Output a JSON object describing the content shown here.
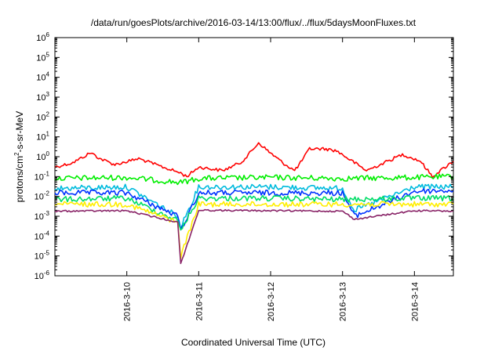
{
  "chart_data": {
    "type": "line",
    "title": "/data/run/goesPlots/archive/2016-03-14/13:00/flux/../flux/5daysMoonFluxes.txt",
    "xlabel": "Coordinated Universal Time (UTC)",
    "ylabel": "protons/cm²-s-sr-MeV",
    "ylabel_parts": {
      "pre": "protons/cm",
      "sup": "2",
      "post": "-s-sr-MeV"
    },
    "yscale": "log",
    "ylim": [
      1e-06,
      1000000.0
    ],
    "xlim": [
      "2016-03-09 00:00",
      "2016-03-14 13:00"
    ],
    "grid": false,
    "legend": "none",
    "y_ticks": [
      {
        "value": 1000000.0,
        "base": "10",
        "exp": "6"
      },
      {
        "value": 100000.0,
        "base": "10",
        "exp": "5"
      },
      {
        "value": 10000.0,
        "base": "10",
        "exp": "4"
      },
      {
        "value": 1000.0,
        "base": "10",
        "exp": "3"
      },
      {
        "value": 100.0,
        "base": "10",
        "exp": "2"
      },
      {
        "value": 10.0,
        "base": "10",
        "exp": "1"
      },
      {
        "value": 1.0,
        "base": "10",
        "exp": "0"
      },
      {
        "value": 0.1,
        "base": "10",
        "exp": "-1"
      },
      {
        "value": 0.01,
        "base": "10",
        "exp": "-2"
      },
      {
        "value": 0.001,
        "base": "10",
        "exp": "-3"
      },
      {
        "value": 0.0001,
        "base": "10",
        "exp": "-4"
      },
      {
        "value": 1e-05,
        "base": "10",
        "exp": "-5"
      },
      {
        "value": 1e-06,
        "base": "10",
        "exp": "-6"
      }
    ],
    "x_ticks": [
      {
        "value": "2016-03-10 00:00",
        "label": "2016-3-10"
      },
      {
        "value": "2016-03-11 00:00",
        "label": "2016-3-11"
      },
      {
        "value": "2016-03-12 00:00",
        "label": "2016-3-12"
      },
      {
        "value": "2016-03-13 00:00",
        "label": "2016-3-13"
      },
      {
        "value": "2016-03-14 00:00",
        "label": "2016-3-14"
      }
    ],
    "series": [
      {
        "color": "#ff0000",
        "x": [
          "2016-03-09 00:00",
          "2016-03-09 06:00",
          "2016-03-09 12:00",
          "2016-03-09 15:00",
          "2016-03-09 20:00",
          "2016-03-10 04:00",
          "2016-03-10 12:00",
          "2016-03-10 18:00",
          "2016-03-10 20:00",
          "2016-03-11 00:00",
          "2016-03-11 08:00",
          "2016-03-11 14:00",
          "2016-03-11 16:00",
          "2016-03-11 20:00",
          "2016-03-11 23:00",
          "2016-03-12 04:00",
          "2016-03-12 08:00",
          "2016-03-12 10:00",
          "2016-03-12 13:00",
          "2016-03-12 18:00",
          "2016-03-12 22:00",
          "2016-03-13 04:00",
          "2016-03-13 08:00",
          "2016-03-13 14:00",
          "2016-03-13 20:00",
          "2016-03-14 02:00",
          "2016-03-14 06:00",
          "2016-03-14 13:00"
        ],
        "y": [
          0.3,
          0.5,
          1.6,
          0.8,
          0.4,
          0.8,
          0.3,
          0.15,
          0.1,
          0.3,
          0.2,
          0.5,
          1.0,
          5.0,
          2.0,
          0.5,
          0.2,
          0.5,
          2.5,
          2.5,
          2.0,
          0.5,
          0.2,
          0.5,
          1.3,
          0.6,
          0.1,
          0.6
        ]
      },
      {
        "color": "#00ee00",
        "x": [
          "2016-03-09 00:00",
          "2016-03-10 00:00",
          "2016-03-10 18:00",
          "2016-03-11 00:00",
          "2016-03-12 00:00",
          "2016-03-13 00:00",
          "2016-03-14 00:00",
          "2016-03-14 13:00"
        ],
        "y": [
          0.08,
          0.09,
          0.05,
          0.08,
          0.09,
          0.08,
          0.09,
          0.1
        ]
      },
      {
        "color": "#00bbdd",
        "x": [
          "2016-03-09 00:00",
          "2016-03-10 00:00",
          "2016-03-10 17:00",
          "2016-03-10 18:00",
          "2016-03-11 00:00",
          "2016-03-12 00:00",
          "2016-03-13 00:00",
          "2016-03-13 04:00",
          "2016-03-14 00:00",
          "2016-03-14 13:00"
        ],
        "y": [
          0.025,
          0.03,
          0.001,
          0.0003,
          0.03,
          0.03,
          0.025,
          0.002,
          0.03,
          0.03
        ]
      },
      {
        "color": "#0033ff",
        "x": [
          "2016-03-09 00:00",
          "2016-03-10 00:00",
          "2016-03-10 17:00",
          "2016-03-10 18:00",
          "2016-03-11 00:00",
          "2016-03-12 00:00",
          "2016-03-13 00:00",
          "2016-03-13 04:00",
          "2016-03-14 00:00",
          "2016-03-14 13:00"
        ],
        "y": [
          0.015,
          0.015,
          0.001,
          0.0002,
          0.015,
          0.015,
          0.015,
          0.001,
          0.018,
          0.02
        ]
      },
      {
        "color": "#00dd66",
        "x": [
          "2016-03-09 00:00",
          "2016-03-10 00:00",
          "2016-03-10 17:00",
          "2016-03-10 18:00",
          "2016-03-11 00:00",
          "2016-03-12 00:00",
          "2016-03-13 00:00",
          "2016-03-14 00:00",
          "2016-03-14 13:00"
        ],
        "y": [
          0.007,
          0.008,
          0.0006,
          0.0002,
          0.008,
          0.008,
          0.007,
          0.008,
          0.008
        ]
      },
      {
        "color": "#ffee00",
        "x": [
          "2016-03-09 00:00",
          "2016-03-10 00:00",
          "2016-03-10 17:00",
          "2016-03-10 18:00",
          "2016-03-11 00:00",
          "2016-03-12 00:00",
          "2016-03-13 00:00",
          "2016-03-14 00:00",
          "2016-03-14 13:00"
        ],
        "y": [
          0.004,
          0.004,
          0.0005,
          1e-05,
          0.004,
          0.004,
          0.004,
          0.004,
          0.004
        ]
      },
      {
        "color": "#882266",
        "x": [
          "2016-03-09 00:00",
          "2016-03-10 00:00",
          "2016-03-10 17:00",
          "2016-03-10 18:00",
          "2016-03-11 00:00",
          "2016-03-12 00:00",
          "2016-03-13 00:00",
          "2016-03-13 04:00",
          "2016-03-14 00:00",
          "2016-03-14 13:00"
        ],
        "y": [
          0.0018,
          0.0019,
          0.0005,
          4e-06,
          0.002,
          0.0019,
          0.0018,
          0.0007,
          0.0019,
          0.0018
        ]
      }
    ]
  }
}
